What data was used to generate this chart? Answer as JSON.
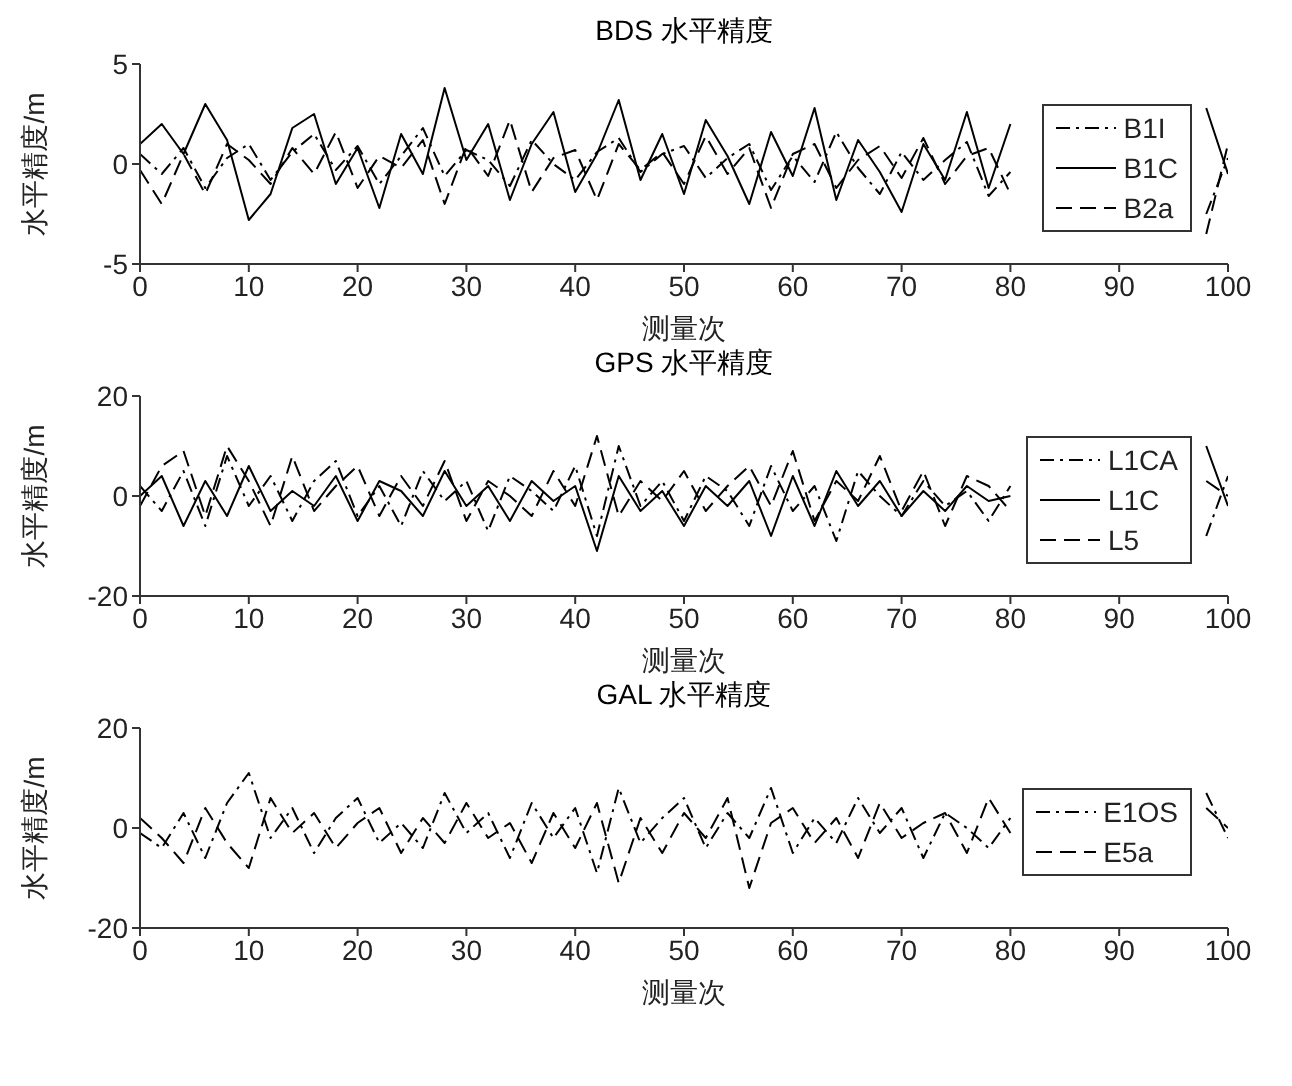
{
  "chart_data": [
    {
      "type": "line",
      "title": "BDS 水平精度",
      "xlabel": "测量次",
      "ylabel": "水平精度/m",
      "x": [
        0,
        2,
        4,
        6,
        8,
        10,
        12,
        14,
        16,
        18,
        20,
        22,
        24,
        26,
        28,
        30,
        32,
        34,
        36,
        38,
        40,
        42,
        44,
        46,
        48,
        50,
        52,
        54,
        56,
        58,
        60,
        62,
        64,
        66,
        68,
        70,
        72,
        74,
        76,
        78,
        80,
        82,
        84,
        86,
        88,
        90,
        92,
        94,
        96,
        98,
        100
      ],
      "xlim": [
        0,
        100
      ],
      "xticks": [
        0,
        10,
        20,
        30,
        40,
        50,
        60,
        70,
        80,
        90,
        100
      ],
      "ylim": [
        -5,
        5
      ],
      "yticks": [
        -5,
        0,
        5
      ],
      "legend": "right",
      "series": [
        {
          "name": "B1I",
          "color": "#000000",
          "line_style": "dotted",
          "values": [
            0.5,
            -0.5,
            0.8,
            -1.2,
            0.3,
            1.0,
            -0.8,
            0.6,
            1.5,
            -0.3,
            0.9,
            -1.0,
            0.4,
            1.8,
            -0.6,
            0.7,
            0.2,
            -1.1,
            1.2,
            0.0,
            -0.8,
            0.6,
            1.3,
            -0.4,
            0.5,
            0.9,
            -0.7,
            0.3,
            1.0,
            -1.3,
            0.4,
            -0.9,
            1.6,
            -0.2,
            -1.5,
            0.6,
            -0.8,
            0.2,
            1.1,
            -1.6,
            -0.4,
            null,
            null,
            null,
            null,
            null,
            null,
            null,
            null,
            -2.5,
            0.3
          ]
        },
        {
          "name": "B1C",
          "color": "#000000",
          "line_style": "solid",
          "values": [
            1.0,
            2.0,
            0.5,
            3.0,
            1.2,
            -2.8,
            -1.5,
            1.8,
            2.5,
            -1.0,
            0.8,
            -2.2,
            1.5,
            -0.5,
            3.8,
            0.2,
            2.0,
            -1.8,
            1.0,
            2.6,
            -1.4,
            0.5,
            3.2,
            -0.8,
            1.5,
            -1.5,
            2.2,
            0.4,
            -2.0,
            1.6,
            -0.6,
            2.8,
            -1.8,
            1.2,
            -0.4,
            -2.4,
            1.0,
            -0.8,
            2.6,
            -1.2,
            2.0,
            null,
            null,
            null,
            null,
            null,
            null,
            null,
            null,
            2.8,
            -0.5
          ]
        },
        {
          "name": "B2a",
          "color": "#000000",
          "line_style": "dashed",
          "values": [
            -0.3,
            -2.0,
            0.5,
            -1.5,
            1.0,
            0.2,
            -1.0,
            0.8,
            -0.5,
            1.6,
            -1.2,
            0.4,
            -0.2,
            1.2,
            -2.0,
            0.9,
            -0.6,
            2.2,
            -1.4,
            0.3,
            0.7,
            -1.8,
            1.0,
            -0.3,
            0.6,
            -1.0,
            1.4,
            -0.5,
            0.8,
            -2.2,
            0.5,
            1.0,
            -1.2,
            0.2,
            0.9,
            -0.7,
            1.3,
            -1.0,
            0.4,
            0.8,
            -1.5,
            null,
            null,
            null,
            null,
            null,
            null,
            null,
            null,
            -3.5,
            1.0
          ]
        }
      ]
    },
    {
      "type": "line",
      "title": "GPS 水平精度",
      "xlabel": "测量次",
      "ylabel": "水平精度/m",
      "x": [
        0,
        2,
        4,
        6,
        8,
        10,
        12,
        14,
        16,
        18,
        20,
        22,
        24,
        26,
        28,
        30,
        32,
        34,
        36,
        38,
        40,
        42,
        44,
        46,
        48,
        50,
        52,
        54,
        56,
        58,
        60,
        62,
        64,
        66,
        68,
        70,
        72,
        74,
        76,
        78,
        80,
        82,
        84,
        86,
        88,
        90,
        92,
        94,
        96,
        98,
        100
      ],
      "xlim": [
        0,
        100
      ],
      "xticks": [
        0,
        10,
        20,
        30,
        40,
        50,
        60,
        70,
        80,
        90,
        100
      ],
      "ylim": [
        -20,
        20
      ],
      "yticks": [
        -20,
        0,
        20
      ],
      "legend": "right",
      "series": [
        {
          "name": "L1CA",
          "color": "#000000",
          "line_style": "dotted",
          "values": [
            2,
            -3,
            5,
            -6,
            8,
            -2,
            4,
            -5,
            3,
            7,
            -4,
            2,
            -6,
            5,
            -1,
            3,
            -7,
            4,
            1,
            -3,
            6,
            -8,
            10,
            -2,
            3,
            -5,
            4,
            1,
            -6,
            6,
            -3,
            2,
            -9,
            5,
            0,
            -4,
            3,
            -2,
            1,
            -5,
            2,
            null,
            null,
            null,
            null,
            null,
            null,
            null,
            null,
            -8,
            4
          ]
        },
        {
          "name": "L1C",
          "color": "#000000",
          "line_style": "solid",
          "values": [
            0,
            4,
            -6,
            3,
            -4,
            6,
            -3,
            1,
            -2,
            4,
            -5,
            3,
            1,
            -4,
            5,
            -2,
            2,
            -5,
            3,
            -1,
            2,
            -11,
            4,
            -3,
            1,
            -6,
            2,
            -2,
            3,
            -8,
            4,
            -6,
            5,
            -2,
            3,
            -4,
            1,
            -3,
            2,
            -1,
            0,
            null,
            null,
            null,
            null,
            null,
            null,
            null,
            null,
            10,
            -2
          ]
        },
        {
          "name": "L5",
          "color": "#000000",
          "line_style": "dashed",
          "values": [
            -2,
            6,
            9,
            -4,
            10,
            3,
            -6,
            8,
            -3,
            2,
            6,
            -4,
            4,
            -2,
            7,
            -5,
            3,
            0,
            -4,
            5,
            -2,
            12,
            -4,
            3,
            -1,
            5,
            -3,
            2,
            6,
            -2,
            9,
            -5,
            3,
            -1,
            8,
            -3,
            5,
            -6,
            4,
            2,
            -3,
            null,
            null,
            null,
            null,
            null,
            null,
            null,
            null,
            3,
            0
          ]
        }
      ]
    },
    {
      "type": "line",
      "title": "GAL 水平精度",
      "xlabel": "测量次",
      "ylabel": "水平精度/m",
      "x": [
        0,
        2,
        4,
        6,
        8,
        10,
        12,
        14,
        16,
        18,
        20,
        22,
        24,
        26,
        28,
        30,
        32,
        34,
        36,
        38,
        40,
        42,
        44,
        46,
        48,
        50,
        52,
        54,
        56,
        58,
        60,
        62,
        64,
        66,
        68,
        70,
        72,
        74,
        76,
        78,
        80,
        82,
        84,
        86,
        88,
        90,
        92,
        94,
        96,
        98,
        100
      ],
      "xlim": [
        0,
        100
      ],
      "xticks": [
        0,
        10,
        20,
        30,
        40,
        50,
        60,
        70,
        80,
        90,
        100
      ],
      "ylim": [
        -20,
        20
      ],
      "yticks": [
        -20,
        0,
        20
      ],
      "legend": "right",
      "series": [
        {
          "name": "E1OS",
          "color": "#000000",
          "line_style": "dotted",
          "values": [
            -1,
            -4,
            3,
            -6,
            5,
            11,
            -2,
            4,
            -5,
            2,
            6,
            -3,
            1,
            -4,
            7,
            -1,
            3,
            -6,
            5,
            -2,
            4,
            -9,
            8,
            -3,
            2,
            6,
            -4,
            3,
            -2,
            8,
            -5,
            2,
            -3,
            6,
            -1,
            4,
            -6,
            3,
            0,
            -4,
            2,
            null,
            null,
            null,
            null,
            null,
            null,
            null,
            null,
            7,
            -2
          ]
        },
        {
          "name": "E5a",
          "color": "#000000",
          "line_style": "dashed",
          "values": [
            2,
            -2,
            -7,
            4,
            -3,
            -8,
            6,
            -1,
            3,
            -4,
            1,
            4,
            -5,
            2,
            -3,
            5,
            -2,
            1,
            -7,
            3,
            -4,
            5,
            -11,
            2,
            -5,
            3,
            -2,
            6,
            -12,
            1,
            4,
            -3,
            2,
            -6,
            5,
            -2,
            1,
            3,
            -5,
            6,
            -1,
            null,
            null,
            null,
            null,
            null,
            null,
            null,
            null,
            4,
            0
          ]
        }
      ]
    }
  ]
}
